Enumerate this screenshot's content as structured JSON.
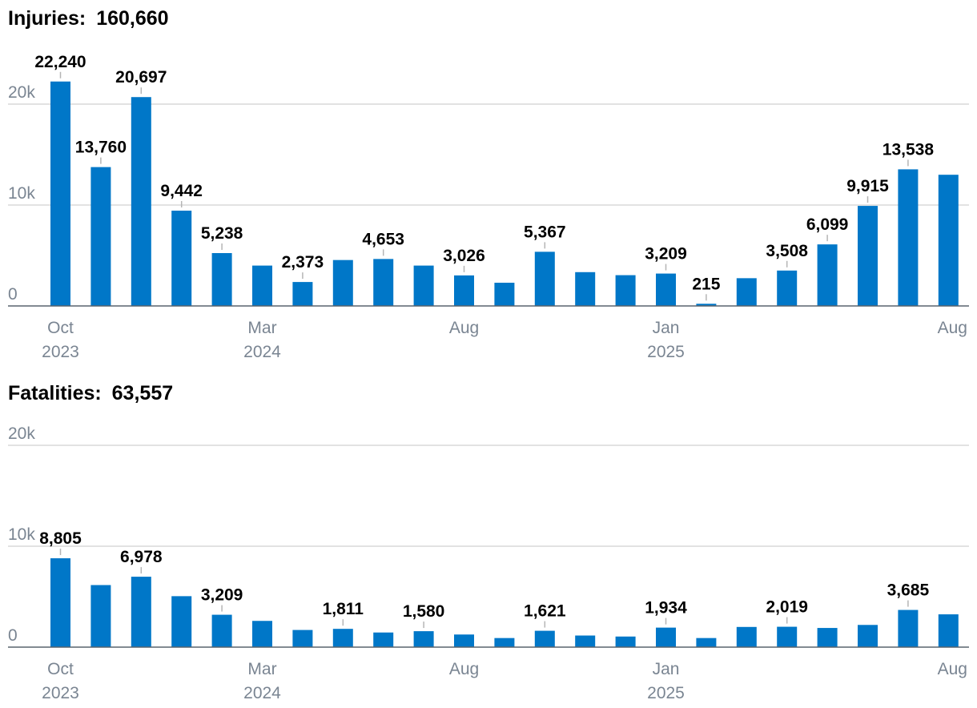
{
  "chart_data": [
    {
      "type": "bar",
      "title": "Injuries:",
      "total": "160,660",
      "categories": [
        "Oct 2023",
        "Nov 2023",
        "Dec 2023",
        "Jan 2024",
        "Feb 2024",
        "Mar 2024",
        "Apr 2024",
        "May 2024",
        "Jun 2024",
        "Jul 2024",
        "Aug 2024",
        "Sep 2024",
        "Oct 2024",
        "Nov 2024",
        "Dec 2024",
        "Jan 2025",
        "Feb 2025",
        "Mar 2025",
        "Apr 2025",
        "May 2025",
        "Jun 2025",
        "Jul 2025",
        "Aug 2025"
      ],
      "values": [
        22240,
        13760,
        20697,
        9442,
        5238,
        4000,
        2373,
        4550,
        4653,
        4000,
        3026,
        2300,
        5367,
        3350,
        3050,
        3209,
        215,
        2750,
        3508,
        6099,
        9915,
        13538,
        13000
      ],
      "labels": [
        "22,240",
        "13,760",
        "20,697",
        "9,442",
        "5,238",
        "",
        "2,373",
        "",
        "4,653",
        "",
        "3,026",
        "",
        "5,367",
        "",
        "",
        "3,209",
        "215",
        "",
        "3,508",
        "6,099",
        "9,915",
        "13,538",
        ""
      ],
      "ylim": [
        0,
        22500
      ],
      "yticks": [
        {
          "value": 0,
          "label": "0"
        },
        {
          "value": 10000,
          "label": "10k"
        },
        {
          "value": 20000,
          "label": "20k"
        }
      ],
      "xticks": [
        {
          "index": 0,
          "line1": "Oct",
          "line2": "2023"
        },
        {
          "index": 5,
          "line1": "Mar",
          "line2": "2024"
        },
        {
          "index": 10,
          "line1": "Aug",
          "line2": ""
        },
        {
          "index": 15,
          "line1": "Jan",
          "line2": "2025"
        },
        {
          "index": 22,
          "line1": "Aug",
          "line2": ""
        }
      ],
      "grid": true,
      "color": "#0077c8"
    },
    {
      "type": "bar",
      "title": "Fatalities:",
      "total": "63,557",
      "categories": [
        "Oct 2023",
        "Nov 2023",
        "Dec 2023",
        "Jan 2024",
        "Feb 2024",
        "Mar 2024",
        "Apr 2024",
        "May 2024",
        "Jun 2024",
        "Jul 2024",
        "Aug 2024",
        "Sep 2024",
        "Oct 2024",
        "Nov 2024",
        "Dec 2024",
        "Jan 2025",
        "Feb 2025",
        "Mar 2025",
        "Apr 2025",
        "May 2025",
        "Jun 2025",
        "Jul 2025",
        "Aug 2025"
      ],
      "values": [
        8805,
        6150,
        6978,
        5050,
        3209,
        2600,
        1700,
        1811,
        1450,
        1580,
        1250,
        900,
        1621,
        1150,
        1050,
        1934,
        900,
        2000,
        2019,
        1900,
        2200,
        3685,
        3250
      ],
      "labels": [
        "8,805",
        "",
        "6,978",
        "",
        "3,209",
        "",
        "",
        "1,811",
        "",
        "1,580",
        "",
        "",
        "1,621",
        "",
        "",
        "1,934",
        "",
        "",
        "2,019",
        "",
        "",
        "3,685",
        ""
      ],
      "ylim": [
        0,
        22500
      ],
      "yticks": [
        {
          "value": 0,
          "label": "0"
        },
        {
          "value": 10000,
          "label": "10k"
        },
        {
          "value": 20000,
          "label": "20k"
        }
      ],
      "xticks": [
        {
          "index": 0,
          "line1": "Oct",
          "line2": "2023"
        },
        {
          "index": 5,
          "line1": "Mar",
          "line2": "2024"
        },
        {
          "index": 10,
          "line1": "Aug",
          "line2": ""
        },
        {
          "index": 15,
          "line1": "Jan",
          "line2": "2025"
        },
        {
          "index": 22,
          "line1": "Aug",
          "line2": ""
        }
      ],
      "grid": true,
      "color": "#0077c8"
    }
  ]
}
